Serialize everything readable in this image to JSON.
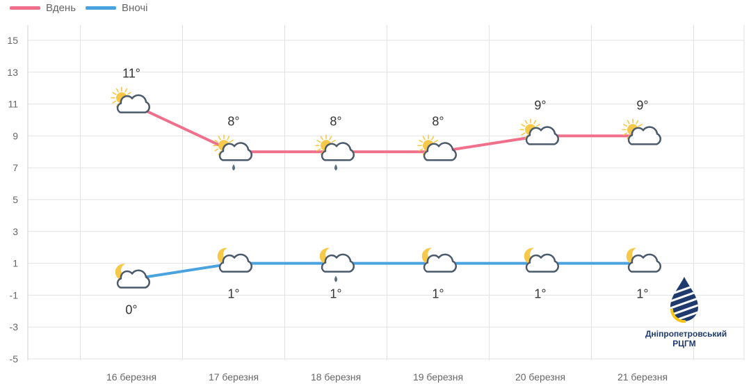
{
  "legend": {
    "day_label": "Вдень",
    "night_label": "Вночі"
  },
  "colors": {
    "day": "#f0708c",
    "night": "#4aa3df",
    "grid": "#e2e2e2",
    "cloud_stroke": "#4a5a6a",
    "sun": "#f6c94a"
  },
  "logo": {
    "line1": "Дніпропетровський",
    "line2": "РЦГМ"
  },
  "chart_data": {
    "type": "line",
    "categories": [
      "16 березня",
      "17 березня",
      "18 березня",
      "19 березня",
      "20 березня",
      "21 березня"
    ],
    "series": [
      {
        "name": "Вдень",
        "values": [
          11,
          8,
          8,
          8,
          9,
          9
        ],
        "labels": [
          "11°",
          "8°",
          "8°",
          "8°",
          "9°",
          "9°"
        ],
        "icons": [
          "sun-cloud",
          "sun-cloud-rain",
          "sun-cloud-rain",
          "sun-cloud",
          "sun-cloud",
          "sun-cloud"
        ]
      },
      {
        "name": "Вночі",
        "values": [
          0,
          1,
          1,
          1,
          1,
          1
        ],
        "labels": [
          "0°",
          "1°",
          "1°",
          "1°",
          "1°",
          "1°"
        ],
        "icons": [
          "moon-cloud",
          "moon-cloud",
          "moon-cloud-rain",
          "moon-cloud",
          "moon-cloud",
          "moon-cloud"
        ]
      }
    ],
    "yticks": [
      15,
      13,
      11,
      9,
      7,
      5,
      3,
      1,
      -1,
      -3,
      -5
    ],
    "ylim": [
      -5,
      15
    ],
    "grid": true,
    "legend_position": "top-left"
  }
}
